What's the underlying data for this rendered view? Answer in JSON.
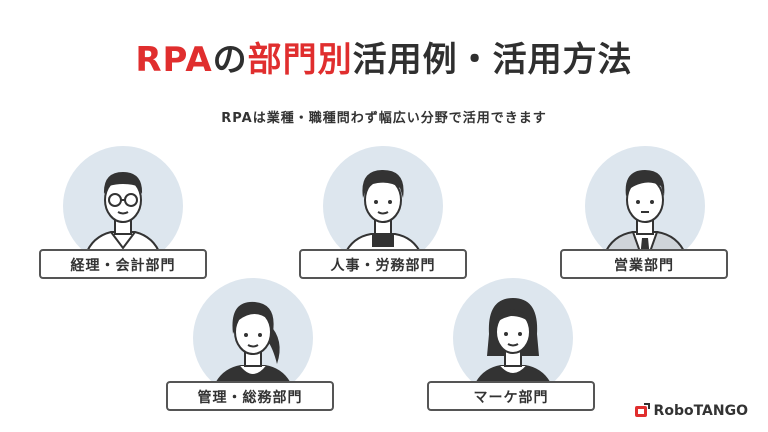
{
  "title": {
    "part1": "RPA",
    "part2": "の",
    "part3": "部門別",
    "part4": "活用例・活用方法"
  },
  "subtitle": "RPAは業種・職種問わず幅広い分野で活用できます",
  "departments": [
    {
      "label": "経理・会計部門",
      "icon": "man-glasses-icon"
    },
    {
      "label": "人事・労務部門",
      "icon": "man-casual-icon"
    },
    {
      "label": "営業部門",
      "icon": "man-suit-icon"
    },
    {
      "label": "管理・総務部門",
      "icon": "woman-ponytail-icon"
    },
    {
      "label": "マーケ部門",
      "icon": "woman-bob-icon"
    }
  ],
  "logo": {
    "text": "RoboTANGO",
    "color": "#e02e2e"
  },
  "colors": {
    "accent": "#e02e2e",
    "circle": "#dde6ee",
    "outline": "#333333"
  }
}
